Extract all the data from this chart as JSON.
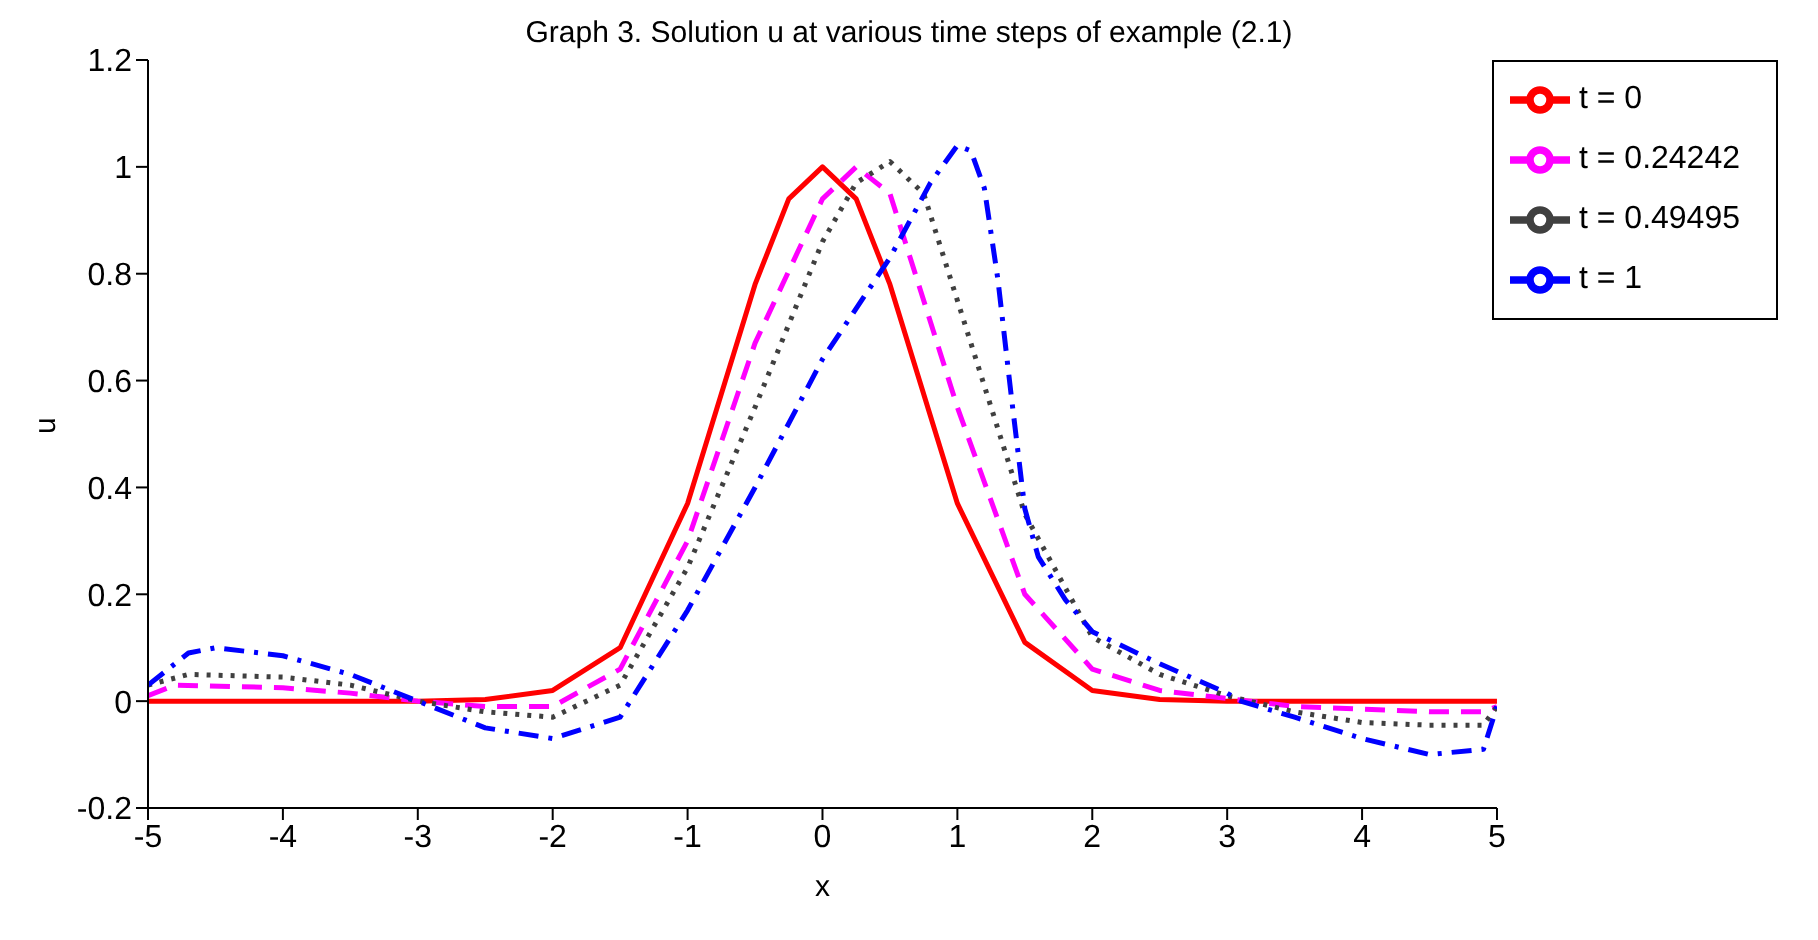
{
  "chart_data": {
    "type": "line",
    "title": "Graph 3. Solution u at various time steps of example (2.1)",
    "xlabel": "x",
    "ylabel": "u",
    "xlim": [
      -5,
      5
    ],
    "ylim": [
      -0.2,
      1.2
    ],
    "xticks": [
      -5,
      -4,
      -3,
      -2,
      -1,
      0,
      1,
      2,
      3,
      4,
      5
    ],
    "yticks": [
      -0.2,
      0,
      0.2,
      0.4,
      0.6,
      0.8,
      1,
      1.2
    ],
    "grid": false,
    "legend": "top right",
    "marker": "none",
    "series": [
      {
        "name": "t = 0",
        "color": "#ff0000",
        "line_style": "solid",
        "x": [
          -5,
          -4,
          -3,
          -2.5,
          -2,
          -1.5,
          -1,
          -0.5,
          -0.25,
          0,
          0.25,
          0.5,
          1,
          1.5,
          2,
          2.5,
          3,
          4,
          5
        ],
        "values": [
          0,
          0,
          0,
          0.003,
          0.02,
          0.1,
          0.37,
          0.78,
          0.94,
          1,
          0.94,
          0.78,
          0.37,
          0.11,
          0.02,
          0.003,
          0,
          0,
          0
        ]
      },
      {
        "name": "t = 0.24242",
        "color": "#ff00ff",
        "line_style": "dashed",
        "x": [
          -5,
          -4.8,
          -4,
          -3.5,
          -3,
          -2.5,
          -2,
          -1.5,
          -1,
          -0.5,
          0,
          0.25,
          0.5,
          1,
          1.5,
          2,
          2.5,
          3,
          3.5,
          4,
          4.5,
          4.9,
          5
        ],
        "values": [
          0.01,
          0.03,
          0.025,
          0.015,
          0,
          -0.01,
          -0.01,
          0.06,
          0.3,
          0.67,
          0.94,
          1,
          0.95,
          0.55,
          0.2,
          0.06,
          0.02,
          0.005,
          -0.01,
          -0.015,
          -0.02,
          -0.02,
          -0.01
        ]
      },
      {
        "name": "t = 0.49495",
        "color": "#404040",
        "line_style": "dotted",
        "x": [
          -5,
          -4.7,
          -4,
          -3.5,
          -3,
          -2.5,
          -2,
          -1.5,
          -1,
          -0.5,
          0,
          0.25,
          0.5,
          0.75,
          1,
          1.5,
          2,
          2.5,
          3,
          3.5,
          4,
          4.5,
          4.9,
          5
        ],
        "values": [
          0.03,
          0.05,
          0.045,
          0.03,
          0,
          -0.02,
          -0.03,
          0.03,
          0.25,
          0.55,
          0.86,
          0.97,
          1.01,
          0.95,
          0.75,
          0.35,
          0.12,
          0.05,
          0.01,
          -0.02,
          -0.04,
          -0.045,
          -0.045,
          -0.01
        ]
      },
      {
        "name": "t = 1",
        "color": "#0000ff",
        "line_style": "dashdot",
        "x": [
          -5,
          -4.7,
          -4.5,
          -4,
          -3.5,
          -3,
          -2.5,
          -2,
          -1.5,
          -1,
          -0.5,
          0,
          0.5,
          0.8,
          1,
          1.1,
          1.2,
          1.3,
          1.4,
          1.5,
          1.6,
          1.8,
          2,
          2.5,
          3,
          3.1,
          3.5,
          4,
          4.5,
          4.9,
          5
        ],
        "values": [
          0.03,
          0.09,
          0.1,
          0.085,
          0.05,
          0,
          -0.05,
          -0.07,
          -0.03,
          0.17,
          0.4,
          0.64,
          0.83,
          0.97,
          1.04,
          1.03,
          0.96,
          0.79,
          0.57,
          0.36,
          0.27,
          0.19,
          0.13,
          0.07,
          0.015,
          0,
          -0.03,
          -0.07,
          -0.1,
          -0.09,
          -0.01
        ]
      }
    ]
  }
}
